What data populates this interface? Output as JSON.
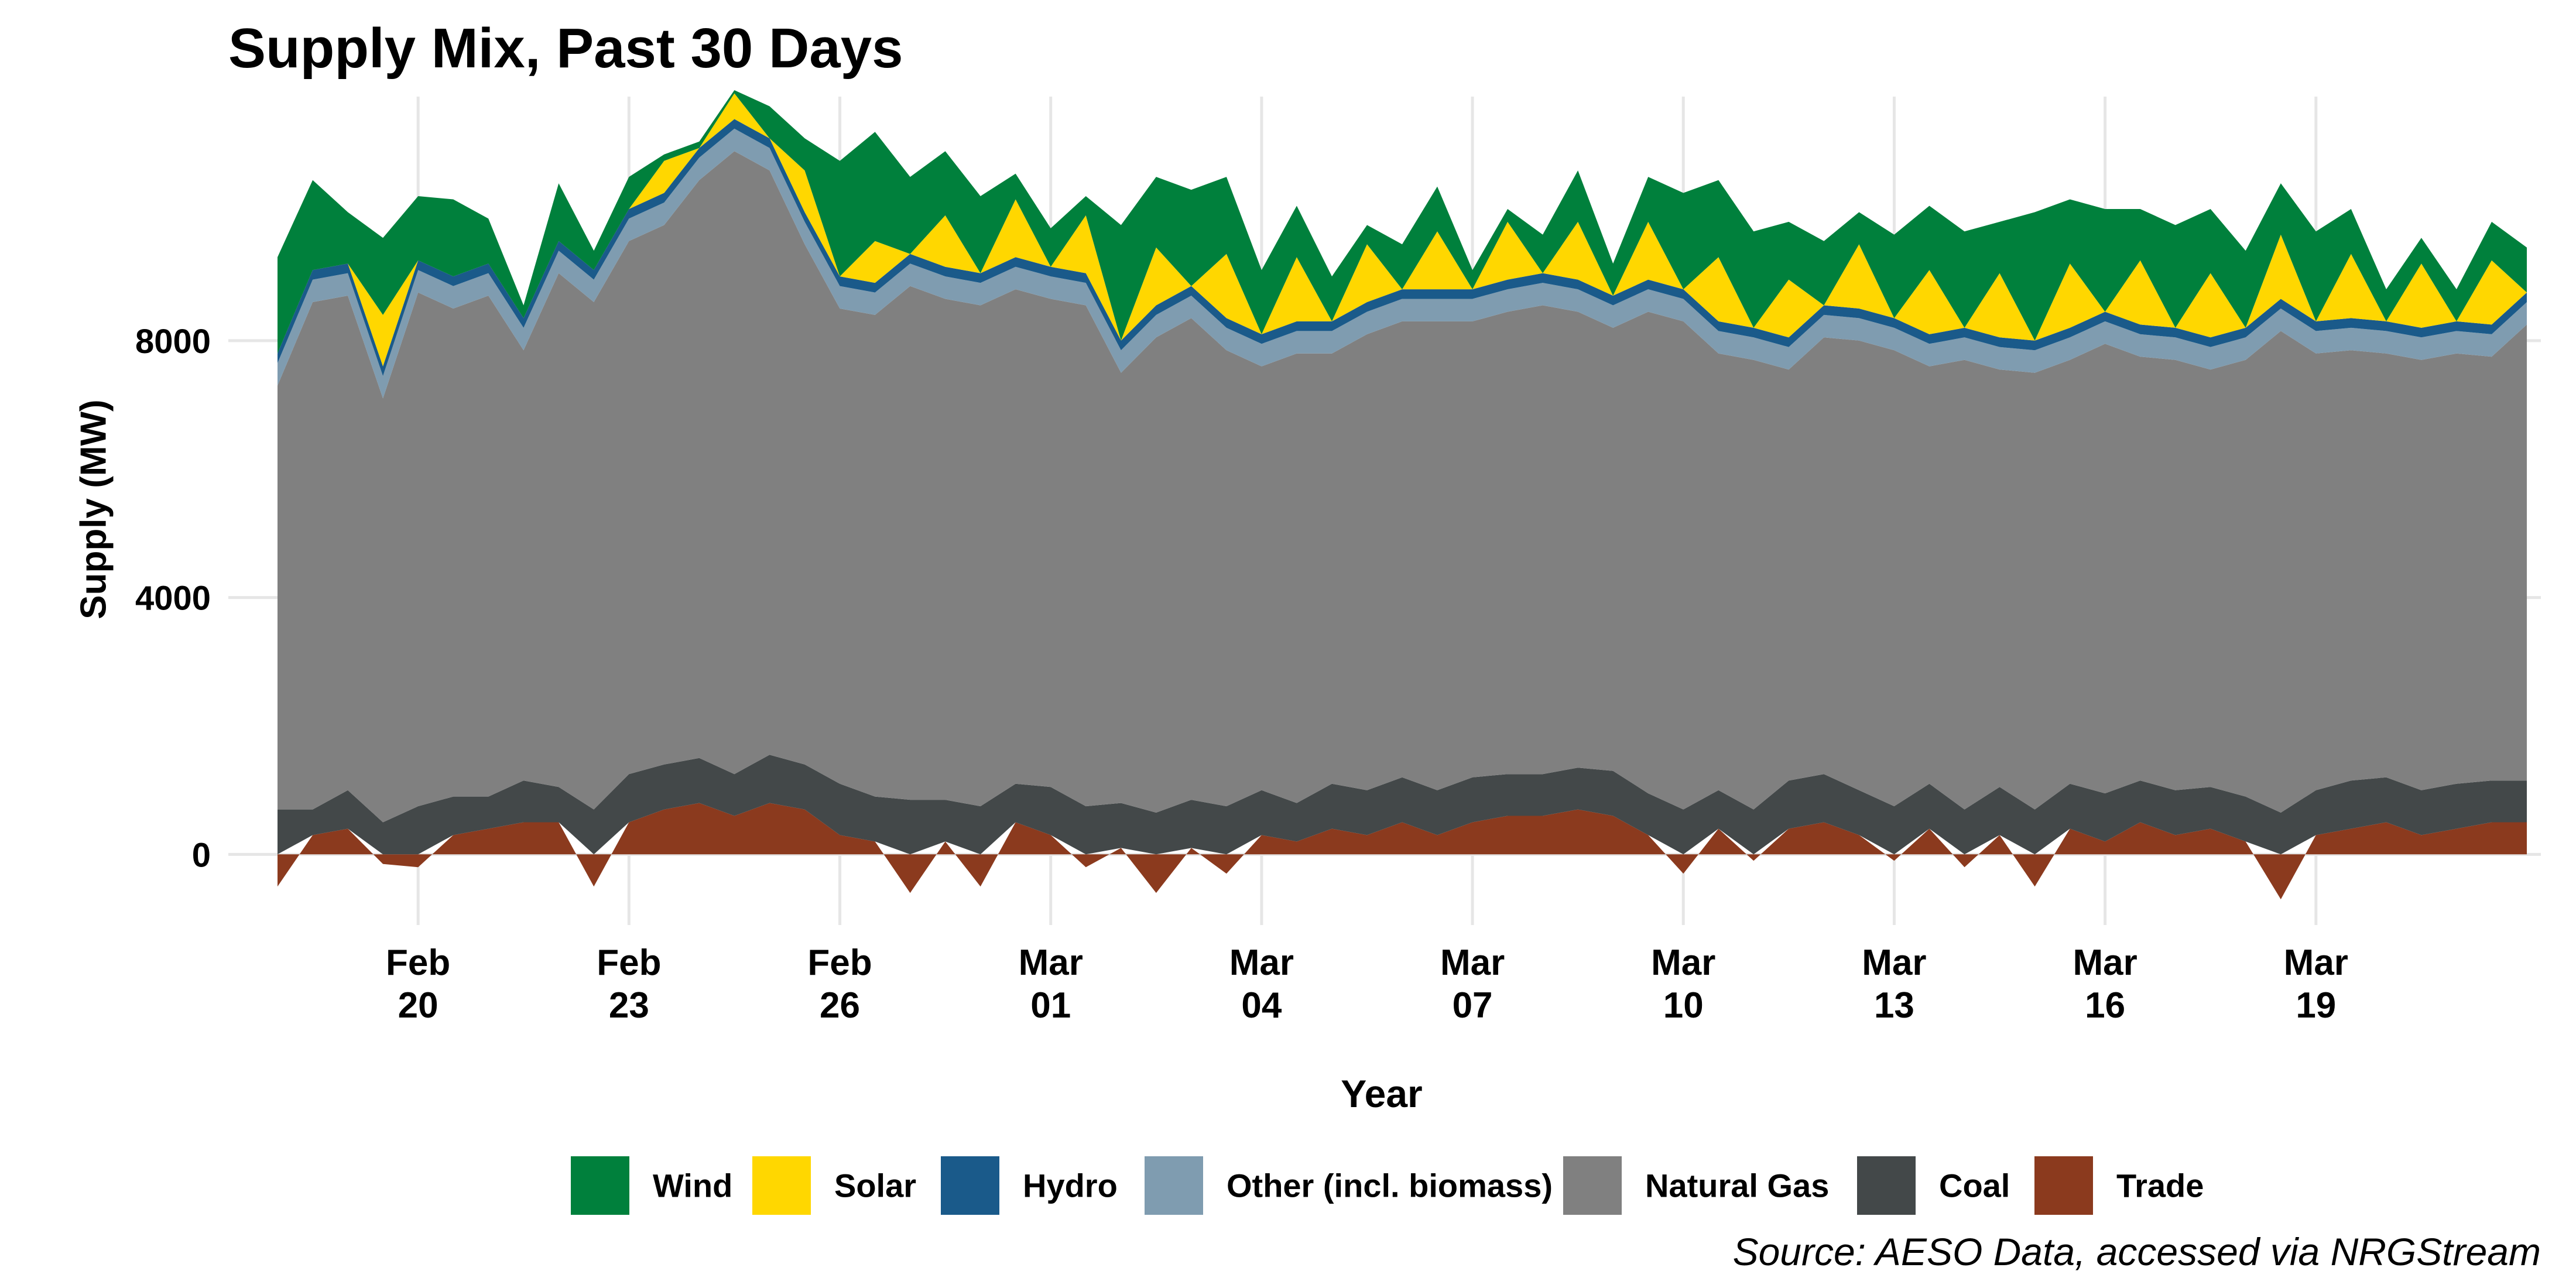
{
  "chart_data": {
    "type": "area",
    "stacked": true,
    "title": "Supply Mix, Past 30 Days",
    "xlabel": "Year",
    "ylabel": "Supply (MW)",
    "caption": "Source: AESO Data, accessed via NRGStream",
    "x_unit": "date",
    "x_start": "2025-02-17",
    "x_end": "2025-03-20",
    "xlim": [
      -2.7,
      30.2
    ],
    "ylim": [
      -1100,
      11800
    ],
    "y_ticks": [
      0,
      4000,
      8000
    ],
    "y_tick_labels": [
      "0",
      "4000",
      "8000"
    ],
    "x_ticks": [
      {
        "x": 0,
        "line1": "Feb",
        "line2": "20"
      },
      {
        "x": 3,
        "line1": "Feb",
        "line2": "23"
      },
      {
        "x": 6,
        "line1": "Feb",
        "line2": "26"
      },
      {
        "x": 9,
        "line1": "Mar",
        "line2": "01"
      },
      {
        "x": 12,
        "line1": "Mar",
        "line2": "04"
      },
      {
        "x": 15,
        "line1": "Mar",
        "line2": "07"
      },
      {
        "x": 18,
        "line1": "Mar",
        "line2": "10"
      },
      {
        "x": 21,
        "line1": "Mar",
        "line2": "13"
      },
      {
        "x": 24,
        "line1": "Mar",
        "line2": "16"
      },
      {
        "x": 27,
        "line1": "Mar",
        "line2": "19"
      }
    ],
    "legend_position": "bottom",
    "grid": true,
    "x": [
      -2.0,
      -1.5,
      -1.0,
      -0.5,
      0.0,
      0.5,
      1.0,
      1.5,
      2.0,
      2.5,
      3.0,
      3.5,
      4.0,
      4.5,
      5.0,
      5.5,
      6.0,
      6.5,
      7.0,
      7.5,
      8.0,
      8.5,
      9.0,
      9.5,
      10.0,
      10.5,
      11.0,
      11.5,
      12.0,
      12.5,
      13.0,
      13.5,
      14.0,
      14.5,
      15.0,
      15.5,
      16.0,
      16.5,
      17.0,
      17.5,
      18.0,
      18.5,
      19.0,
      19.5,
      20.0,
      20.5,
      21.0,
      21.5,
      22.0,
      22.5,
      23.0,
      23.5,
      24.0,
      24.5,
      25.0,
      25.5,
      26.0,
      26.5,
      27.0,
      27.5,
      28.0,
      28.5,
      29.0,
      29.5,
      30.0
    ],
    "trade": [
      -500,
      300,
      400,
      -150,
      -200,
      300,
      400,
      500,
      500,
      -500,
      500,
      700,
      800,
      600,
      800,
      700,
      300,
      200,
      -600,
      200,
      -500,
      500,
      300,
      -200,
      100,
      -600,
      100,
      -300,
      300,
      200,
      400,
      300,
      500,
      300,
      500,
      600,
      600,
      700,
      600,
      300,
      -300,
      400,
      -100,
      400,
      500,
      300,
      -100,
      400,
      -200,
      300,
      -500,
      400,
      200,
      500,
      300,
      400,
      200,
      -700,
      300,
      400,
      500,
      300,
      400,
      500,
      500
    ],
    "series": [
      {
        "name": "Trade",
        "color": "#8b3a1e",
        "note": "signed values listed in trade"
      },
      {
        "name": "Coal",
        "color": "#434849",
        "values": [
          700,
          400,
          600,
          500,
          750,
          600,
          500,
          650,
          550,
          700,
          750,
          700,
          700,
          650,
          750,
          700,
          800,
          700,
          850,
          650,
          750,
          600,
          750,
          750,
          700,
          650,
          750,
          750,
          700,
          600,
          700,
          700,
          700,
          700,
          700,
          650,
          650,
          650,
          700,
          650,
          700,
          600,
          700,
          750,
          750,
          700,
          750,
          700,
          700,
          750,
          700,
          700,
          750,
          650,
          700,
          650,
          700,
          650,
          700,
          750,
          700,
          700,
          700,
          650,
          650
        ]
      },
      {
        "name": "Natural Gas",
        "color": "#808080",
        "values": [
          6600,
          7900,
          7700,
          6600,
          8000,
          7600,
          7800,
          6700,
          8000,
          7900,
          8300,
          8400,
          9000,
          9700,
          9100,
          8100,
          7400,
          7500,
          8000,
          7800,
          7800,
          7700,
          7600,
          7800,
          6700,
          7400,
          7500,
          7100,
          6600,
          7000,
          6700,
          7100,
          7100,
          7300,
          7100,
          7200,
          7300,
          7100,
          6900,
          7500,
          7600,
          6800,
          7000,
          6400,
          6800,
          7000,
          7100,
          6500,
          7000,
          6500,
          6800,
          6600,
          7000,
          6600,
          6700,
          6500,
          6800,
          7500,
          6800,
          6700,
          6600,
          6700,
          6700,
          6600,
          7100
        ]
      },
      {
        "name": "Other (incl. biomass)",
        "color": "#7f9cb0",
        "values": [
          350,
          350,
          350,
          350,
          350,
          350,
          350,
          350,
          350,
          350,
          350,
          350,
          350,
          350,
          350,
          350,
          350,
          350,
          350,
          350,
          350,
          350,
          350,
          350,
          350,
          350,
          350,
          350,
          350,
          350,
          350,
          350,
          350,
          350,
          350,
          350,
          350,
          350,
          350,
          350,
          350,
          350,
          350,
          350,
          350,
          350,
          350,
          350,
          350,
          350,
          350,
          350,
          350,
          350,
          350,
          350,
          350,
          350,
          350,
          350,
          350,
          350,
          350,
          350,
          350
        ]
      },
      {
        "name": "Hydro",
        "color": "#1a5a8a",
        "values": [
          150,
          150,
          150,
          150,
          150,
          150,
          150,
          150,
          150,
          150,
          150,
          150,
          150,
          150,
          150,
          150,
          150,
          150,
          150,
          150,
          150,
          150,
          150,
          150,
          150,
          150,
          150,
          150,
          150,
          150,
          150,
          150,
          150,
          150,
          150,
          150,
          150,
          150,
          150,
          150,
          150,
          150,
          150,
          150,
          150,
          150,
          150,
          150,
          150,
          150,
          150,
          150,
          150,
          150,
          150,
          150,
          150,
          150,
          150,
          150,
          150,
          150,
          150,
          150,
          150
        ]
      },
      {
        "name": "Solar",
        "color": "#ffd700",
        "values": [
          0,
          0,
          0,
          800,
          0,
          0,
          0,
          0,
          0,
          0,
          0,
          500,
          0,
          400,
          0,
          650,
          0,
          650,
          0,
          800,
          0,
          900,
          0,
          900,
          0,
          900,
          0,
          1000,
          0,
          1000,
          0,
          900,
          0,
          900,
          0,
          900,
          0,
          900,
          0,
          900,
          0,
          1000,
          0,
          900,
          0,
          1000,
          0,
          1000,
          0,
          1000,
          0,
          1000,
          0,
          1000,
          0,
          1000,
          0,
          1000,
          0,
          1000,
          0,
          1000,
          0,
          1000,
          0
        ]
      },
      {
        "name": "Wind",
        "color": "#00803c",
        "values": [
          1500,
          1400,
          800,
          1200,
          1000,
          1200,
          700,
          200,
          900,
          300,
          500,
          100,
          100,
          50,
          500,
          500,
          1800,
          1700,
          1200,
          1000,
          1200,
          400,
          600,
          300,
          1800,
          1100,
          1500,
          1200,
          1000,
          800,
          700,
          300,
          700,
          700,
          300,
          200,
          600,
          800,
          500,
          700,
          1500,
          1200,
          1500,
          900,
          1000,
          500,
          1300,
          1000,
          1500,
          800,
          2000,
          1000,
          1600,
          800,
          1600,
          1000,
          1200,
          800,
          1400,
          700,
          500,
          400,
          500,
          600,
          700
        ]
      }
    ]
  }
}
